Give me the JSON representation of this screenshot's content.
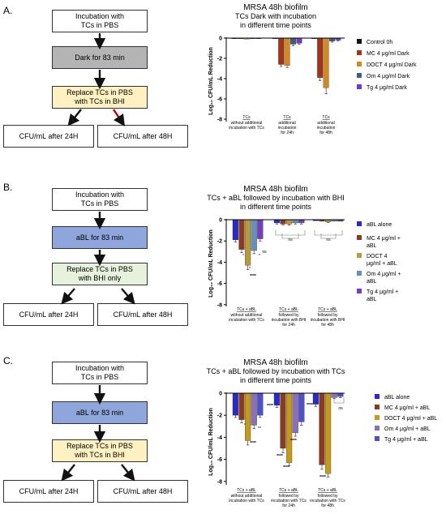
{
  "panels": [
    {
      "letter": "A.",
      "flow": {
        "step1": "Incubation with\nTCs in PBS",
        "step2": "Dark for 83 min",
        "step3": "Replace TCs in PBS\nwith TCs in BHI",
        "out1": "CFU/mL after 24H",
        "out2": "CFU/mL after 48H"
      },
      "chart": {
        "title_line1": "MRSA 48h biofilm",
        "title_line2": "TCs Dark with incubation",
        "title_line3": "in different time points",
        "ylabel": "Log₁₀ CFU/mL Reduction",
        "yticks": [
          "0",
          "-2",
          "-4",
          "-6",
          "-8"
        ],
        "groups": [
          {
            "line1": "TCs",
            "line2": "without additional",
            "line3": "incubation with TCs"
          },
          {
            "line1": "TCs",
            "line2": "additional",
            "line3": "incubation",
            "line4": "for 24h"
          },
          {
            "line1": "TCs",
            "line2": "additional",
            "line3": "incubation",
            "line4": "for 48h"
          }
        ],
        "legend": [
          "Control 0h",
          "MC 4 μg/ml Dark",
          "DOCT 4 μg/ml Dark",
          "Om 4 μg/ml Dark",
          "Tg 4 μg/ml Dark"
        ],
        "stars": []
      }
    },
    {
      "letter": "B.",
      "flow": {
        "step1": "Incubation with\nTCs in PBS",
        "step2": "aBL for 83 min",
        "step3": "Replace TCs in PBS\nwith BHI only",
        "out1": "CFU/mL after 24H",
        "out2": "CFU/mL after 48H"
      },
      "chart": {
        "title_line1": "MRSA 48h biofilm",
        "title_line2": "TCs + aBL followed by incubation with BHI",
        "title_line3": "in different time points",
        "ylabel": "Log₁₀ CFU/mL Reduction",
        "yticks": [
          "0",
          "-2",
          "-4",
          "-6",
          "-8"
        ],
        "groups": [
          {
            "line1": "TCs + aBL",
            "line2": "without additional",
            "line3": "incubation with TCs"
          },
          {
            "line1": "TCs + aBL",
            "line2": "followed by",
            "line3": "incubation with BHI",
            "line4": "for 24h"
          },
          {
            "line1": "TCs + aBL",
            "line2": "followed by",
            "line3": "incubation with BHI",
            "line4": "for 48h"
          }
        ],
        "legend": [
          "aBL alone",
          "MC 4 μg/ml + aBL",
          "DOCT 4 μg/ml + aBL",
          "Om 4 μg/ml + aBL",
          "Tg 4 μg/ml + aBL"
        ],
        "legend_wrapped": [
          [
            "aBL alone"
          ],
          [
            "MC 4 μg/ml +",
            "aBL"
          ],
          [
            "DOCT 4",
            "μg/ml + aBL"
          ],
          [
            "Om 4 μg/ml +",
            "aBL"
          ],
          [
            "Tg 4 μg/ml +",
            "aBL"
          ]
        ],
        "stars": [
          "*",
          "*",
          "****",
          "*",
          "ns",
          "ns",
          "ns"
        ]
      }
    },
    {
      "letter": "C.",
      "flow": {
        "step1": "Incubation with\nTCs in PBS",
        "step2": "aBL for 83 min",
        "step3": "Replace TCs in PBS\nwith TCs in BHI",
        "out1": "CFU/mL after 24H",
        "out2": "CFU/mL after 48H"
      },
      "chart": {
        "title_line1": "MRSA 48h biofilm",
        "title_line2": "TCs + aBL followed by incubation with TCs",
        "title_line3": "in different time points",
        "ylabel": "Log₁₀ CFU/mL Reduction",
        "yticks": [
          "0",
          "-2",
          "-4",
          "-6",
          "-8"
        ],
        "groups": [
          {
            "line1": "TCs + aBL",
            "line2": "without additional",
            "line3": "incubation with TCs"
          },
          {
            "line1": "TCs + aBL",
            "line2": "followed by",
            "line3": "incubation with TCs",
            "line4": "for 24h"
          },
          {
            "line1": "TCs + aBL",
            "line2": "followed by",
            "line3": "incubation with TCs",
            "line4": "for 48h"
          }
        ],
        "legend": [
          "aBL alone",
          "MC 4 μg/ml + aBL",
          "DOCT 4 μg/ml + aBL",
          "Om 4 μg/ml + aBL",
          "Tg 4 μg/ml + aBL"
        ],
        "stars": [
          "*",
          "****",
          "**",
          "****",
          "****",
          "****",
          "****",
          "****",
          "****",
          "ns"
        ]
      }
    }
  ],
  "colors": {
    "panel_a": [
      "#111111",
      "#a33418",
      "#d08a22",
      "#3f5e78",
      "#7338c8"
    ],
    "panel_b": [
      "#2a2ac8",
      "#8a3a20",
      "#b89a3c",
      "#6690b8",
      "#7040c0"
    ],
    "panel_c": [
      "#2a2ac8",
      "#8a3a20",
      "#c49a1c",
      "#8a70b8",
      "#5050c8"
    ],
    "flow_gray": "#b4b4b4",
    "flow_blue": "#8fa6dc",
    "flow_green": "#e7f2dc",
    "flow_yellow": "#fff1c2"
  },
  "chart_data": [
    {
      "type": "bar",
      "title": "MRSA 48h biofilm TCs Dark with incubation in different time points",
      "ylabel": "Log10 CFU/mL Reduction",
      "ylim": [
        -8,
        0
      ],
      "categories": [
        "TCs without additional incubation with TCs",
        "TCs additional incubation for 24h",
        "TCs additional incubation for 48h"
      ],
      "series": [
        {
          "name": "Control 0h",
          "values": [
            0,
            0,
            0
          ],
          "errors": [
            0.05,
            0.05,
            0.05
          ]
        },
        {
          "name": "MC 4 μg/ml Dark",
          "values": [
            -0.05,
            -2.6,
            -3.9
          ],
          "errors": [
            0.05,
            0.2,
            0.3
          ]
        },
        {
          "name": "DOCT 4 μg/ml Dark",
          "values": [
            -0.1,
            -2.7,
            -4.9
          ],
          "errors": [
            0.05,
            0.2,
            0.6
          ]
        },
        {
          "name": "Om 4 μg/ml Dark",
          "values": [
            -0.05,
            -0.6,
            -0.3
          ],
          "errors": [
            0.05,
            0.15,
            0.1
          ]
        },
        {
          "name": "Tg 4 μg/ml Dark",
          "values": [
            -0.05,
            -0.5,
            -0.2
          ],
          "errors": [
            0.05,
            0.1,
            0.1
          ]
        }
      ]
    },
    {
      "type": "bar",
      "title": "MRSA 48h biofilm TCs + aBL followed by incubation with BHI in different time points",
      "ylabel": "Log10 CFU/mL Reduction",
      "ylim": [
        -8,
        0
      ],
      "categories": [
        "TCs + aBL without additional incubation with TCs",
        "TCs + aBL followed by incubation with BHI for 24h",
        "TCs + aBL followed by incubation with BHI for 48h"
      ],
      "series": [
        {
          "name": "aBL alone",
          "values": [
            -1.9,
            -0.3,
            -0.1
          ],
          "errors": [
            0.2,
            0.1,
            0.05
          ]
        },
        {
          "name": "MC 4 μg/ml + aBL",
          "values": [
            -2.8,
            -0.4,
            -0.15
          ],
          "errors": [
            0.3,
            0.1,
            0.05
          ]
        },
        {
          "name": "DOCT 4 μg/ml + aBL",
          "values": [
            -4.3,
            -0.4,
            -0.2
          ],
          "errors": [
            0.4,
            0.1,
            0.05
          ]
        },
        {
          "name": "Om 4 μg/ml + aBL",
          "values": [
            -2.9,
            -0.3,
            -0.15
          ],
          "errors": [
            0.3,
            0.1,
            0.05
          ]
        },
        {
          "name": "Tg 4 μg/ml + aBL",
          "values": [
            -1.8,
            -0.3,
            -0.15
          ],
          "errors": [
            0.2,
            0.1,
            0.05
          ]
        }
      ]
    },
    {
      "type": "bar",
      "title": "MRSA 48h biofilm TCs + aBL followed by incubation with TCs in different time points",
      "ylabel": "Log10 CFU/mL Reduction",
      "ylim": [
        -8,
        0
      ],
      "categories": [
        "TCs + aBL without additional incubation with TCs",
        "TCs + aBL followed by incubation with TCs for 24h",
        "TCs + aBL followed by incubation with TCs for 48h"
      ],
      "series": [
        {
          "name": "aBL alone",
          "values": [
            -2.0,
            -1.1,
            -1.0
          ],
          "errors": [
            0.2,
            0.2,
            0.2
          ]
        },
        {
          "name": "MC 4 μg/ml + aBL",
          "values": [
            -2.4,
            -5.0,
            -6.5
          ],
          "errors": [
            0.3,
            0.4,
            0.4
          ]
        },
        {
          "name": "DOCT 4 μg/ml + aBL",
          "values": [
            -4.3,
            -6.3,
            -7.3
          ],
          "errors": [
            0.4,
            0.3,
            0.3
          ]
        },
        {
          "name": "Om 4 μg/ml + aBL",
          "values": [
            -2.9,
            -3.6,
            -0.4
          ],
          "errors": [
            0.3,
            0.3,
            0.1
          ]
        },
        {
          "name": "Tg 4 μg/ml + aBL",
          "values": [
            -2.0,
            -2.6,
            -0.3
          ],
          "errors": [
            0.2,
            0.3,
            0.1
          ]
        }
      ]
    }
  ]
}
